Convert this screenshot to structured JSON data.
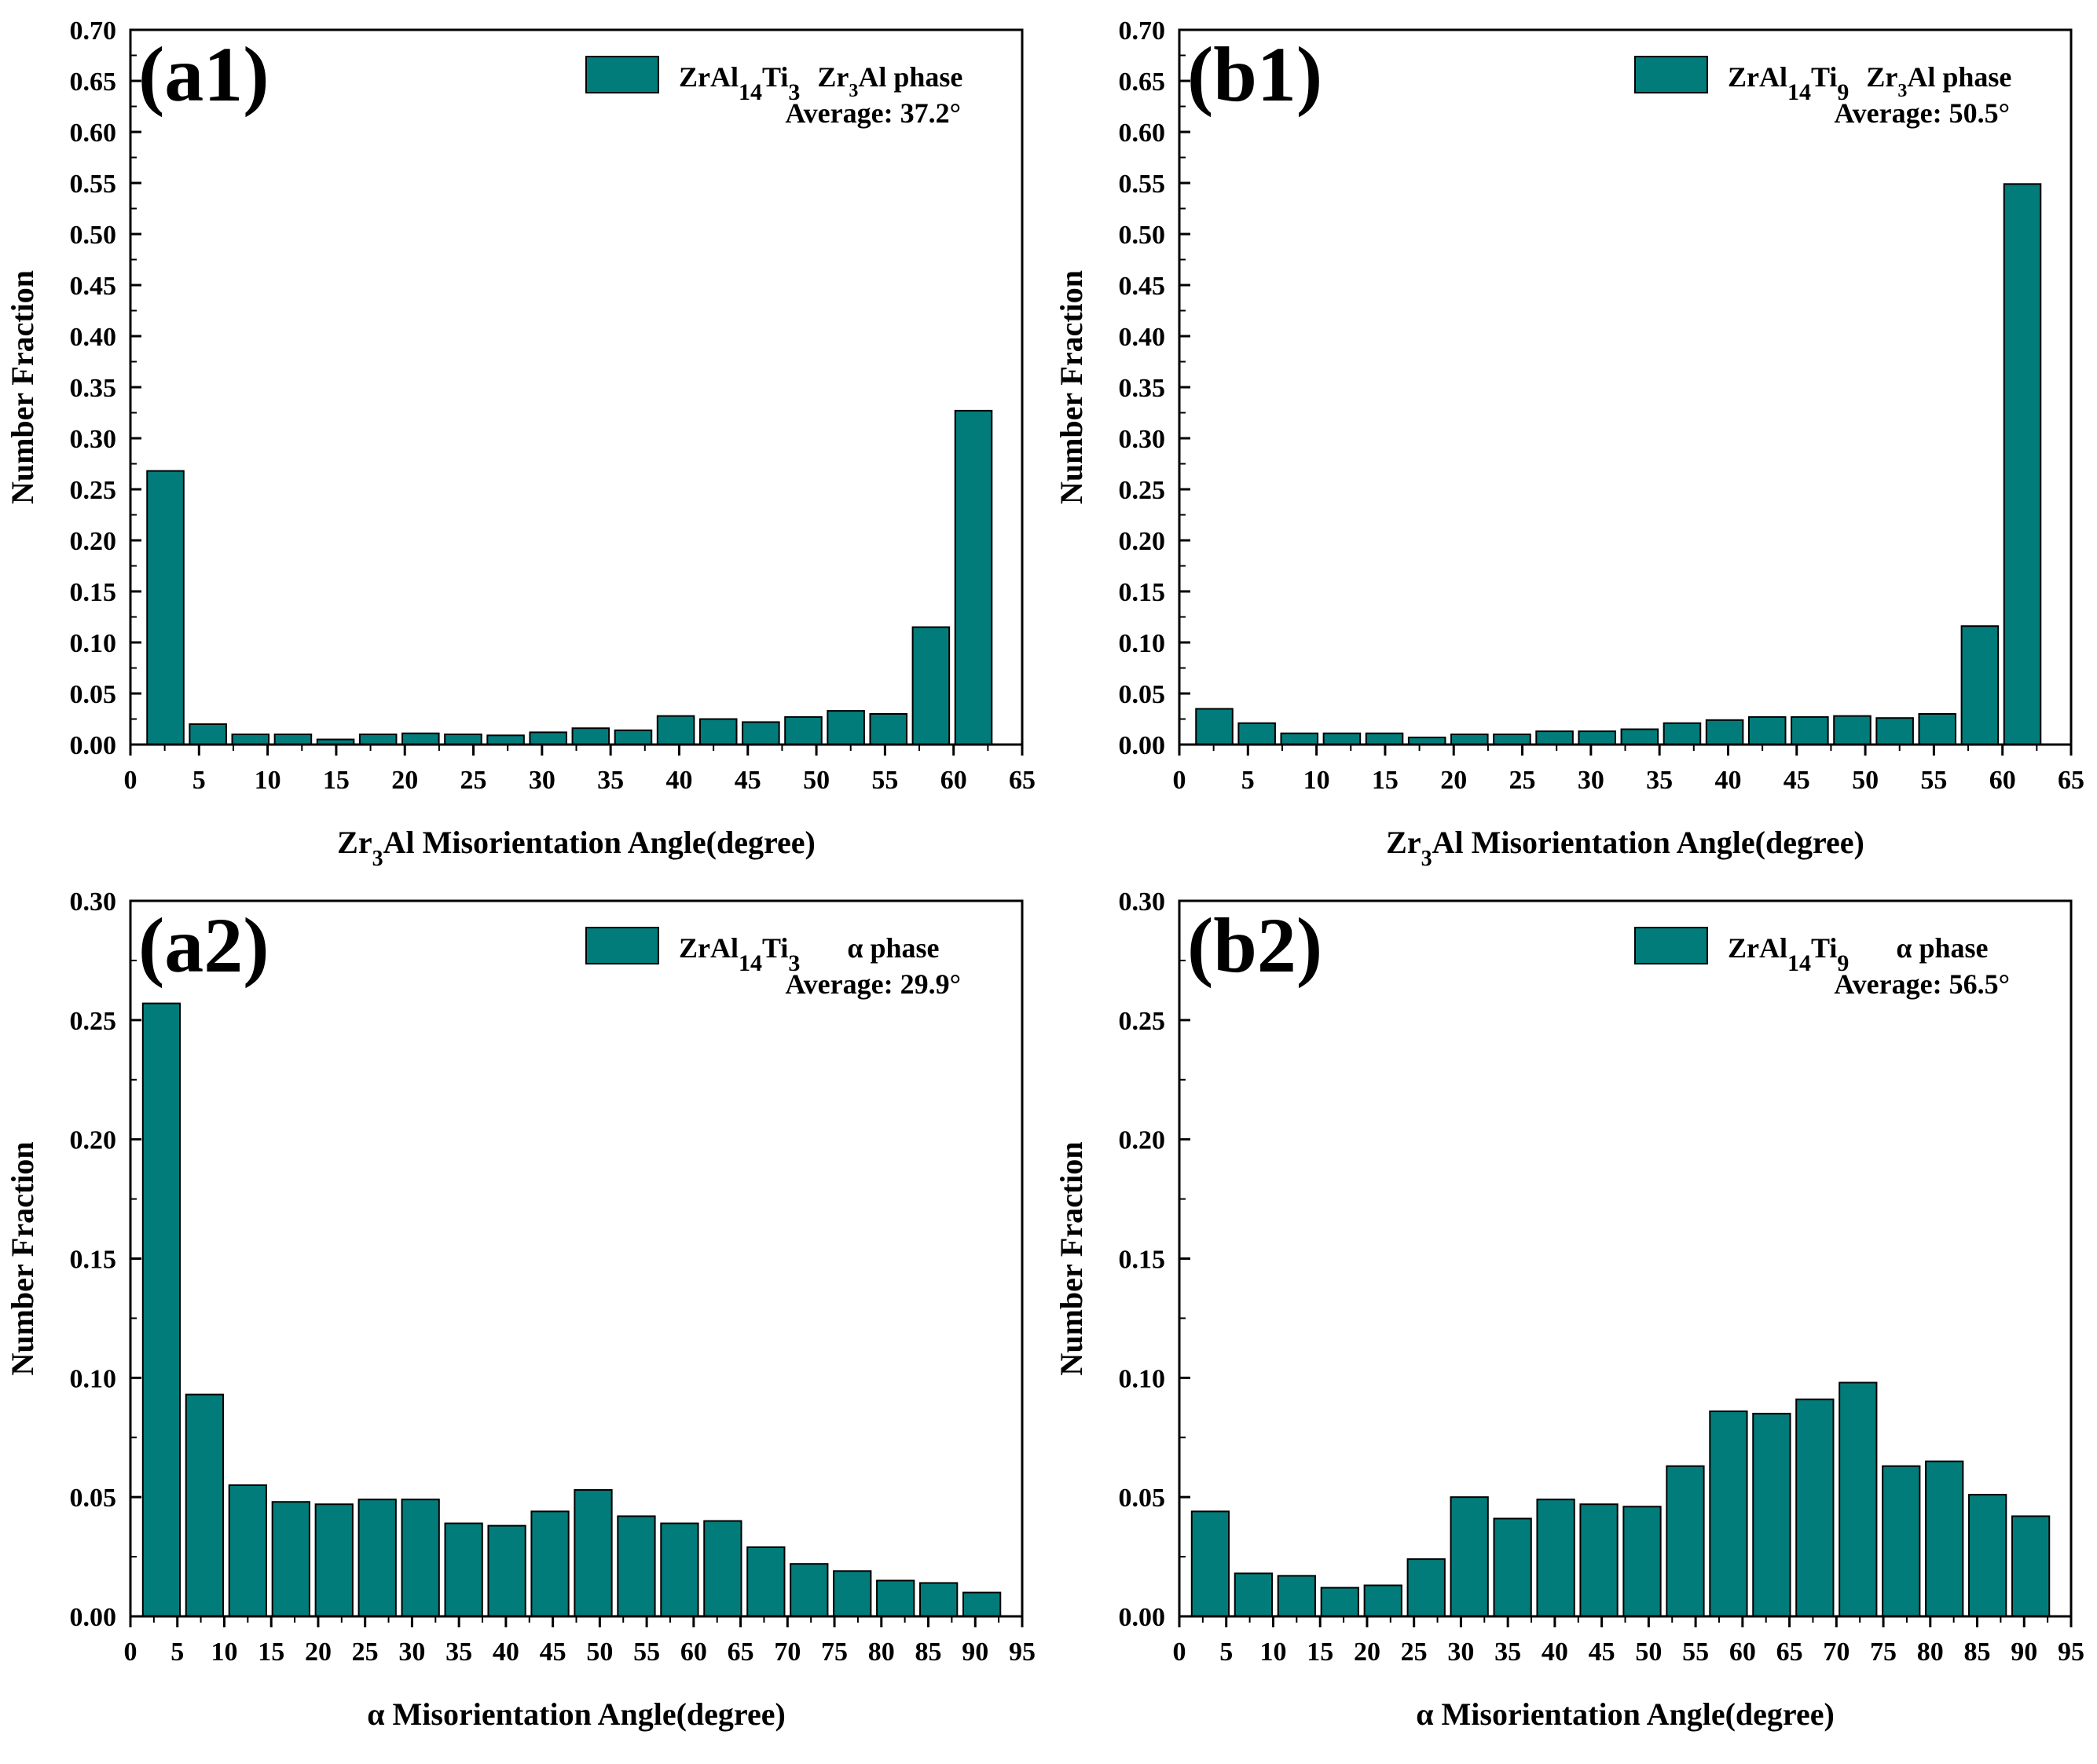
{
  "figure": {
    "bar_color": "#027c7a",
    "panels": [
      {
        "panel_label": "(a1)",
        "legend": {
          "base": "ZrAl",
          "sub1": "14",
          "mid": "Ti",
          "sub2": "3",
          "phase_pre": "Zr",
          "phase_sub": "3",
          "phase_post": "Al phase"
        },
        "average": "Average: 37.2°",
        "xlabel": {
          "pre": "Zr",
          "sub": "3",
          "post": "Al Misorientation Angle(degree)"
        },
        "ylabel": "Number Fraction",
        "yticks": [
          "0.00",
          "0.05",
          "0.10",
          "0.15",
          "0.20",
          "0.25",
          "0.30",
          "0.35",
          "0.40",
          "0.45",
          "0.50",
          "0.55",
          "0.60",
          "0.65",
          "0.70"
        ],
        "xticks": [
          "0",
          "5",
          "10",
          "15",
          "20",
          "25",
          "30",
          "35",
          "40",
          "45",
          "50",
          "55",
          "60",
          "65"
        ]
      },
      {
        "panel_label": "(b1)",
        "legend": {
          "base": "ZrAl",
          "sub1": "14",
          "mid": "Ti",
          "sub2": "9",
          "phase_pre": "Zr",
          "phase_sub": "3",
          "phase_post": "Al phase"
        },
        "average": "Average: 50.5°",
        "xlabel": {
          "pre": "Zr",
          "sub": "3",
          "post": "Al Misorientation Angle(degree)"
        },
        "ylabel": "Number Fraction",
        "yticks": [
          "0.00",
          "0.05",
          "0.10",
          "0.15",
          "0.20",
          "0.25",
          "0.30",
          "0.35",
          "0.40",
          "0.45",
          "0.50",
          "0.55",
          "0.60",
          "0.65",
          "0.70"
        ],
        "xticks": [
          "0",
          "5",
          "10",
          "15",
          "20",
          "25",
          "30",
          "35",
          "40",
          "45",
          "50",
          "55",
          "60",
          "65"
        ]
      },
      {
        "panel_label": "(a2)",
        "legend": {
          "base": "ZrAl",
          "sub1": "14",
          "mid": "Ti",
          "sub2": "3",
          "phase_pre": "α phase",
          "phase_sub": "",
          "phase_post": ""
        },
        "average": "Average: 29.9°",
        "xlabel": {
          "pre": "α Misorientation Angle(degree)",
          "sub": "",
          "post": ""
        },
        "ylabel": "Number Fraction",
        "yticks": [
          "0.00",
          "0.05",
          "0.10",
          "0.15",
          "0.20",
          "0.25",
          "0.30"
        ],
        "xticks": [
          "0",
          "5",
          "10",
          "15",
          "20",
          "25",
          "30",
          "35",
          "40",
          "45",
          "50",
          "55",
          "60",
          "65",
          "70",
          "75",
          "80",
          "85",
          "90",
          "95"
        ]
      },
      {
        "panel_label": "(b2)",
        "legend": {
          "base": "ZrAl",
          "sub1": "14",
          "mid": "Ti",
          "sub2": "9",
          "phase_pre": "α phase",
          "phase_sub": "",
          "phase_post": ""
        },
        "average": "Average: 56.5°",
        "xlabel": {
          "pre": "α Misorientation Angle(degree)",
          "sub": "",
          "post": ""
        },
        "ylabel": "Number Fraction",
        "yticks": [
          "0.00",
          "0.05",
          "0.10",
          "0.15",
          "0.20",
          "0.25",
          "0.30"
        ],
        "xticks": [
          "0",
          "5",
          "10",
          "15",
          "20",
          "25",
          "30",
          "35",
          "40",
          "45",
          "50",
          "55",
          "60",
          "65",
          "70",
          "75",
          "80",
          "85",
          "90",
          "95"
        ]
      }
    ]
  },
  "chart_data": [
    {
      "type": "bar",
      "title": "(a1)",
      "series_name": "ZrAl14Ti3 Zr3Al phase",
      "xlabel": "Zr3Al Misorientation Angle(degree)",
      "ylabel": "Number Fraction",
      "xlim": [
        0,
        65
      ],
      "ylim": [
        0,
        0.7
      ],
      "bin_width": 3.1,
      "x": [
        2.55,
        5.65,
        8.75,
        11.85,
        14.95,
        18.05,
        21.15,
        24.25,
        27.35,
        30.45,
        33.55,
        36.65,
        39.75,
        42.85,
        45.95,
        49.05,
        52.15,
        55.25,
        58.35,
        61.45
      ],
      "values": [
        0.268,
        0.02,
        0.01,
        0.01,
        0.005,
        0.01,
        0.011,
        0.01,
        0.009,
        0.012,
        0.016,
        0.014,
        0.028,
        0.025,
        0.022,
        0.027,
        0.033,
        0.03,
        0.115,
        0.327
      ],
      "average": 37.2
    },
    {
      "type": "bar",
      "title": "(b1)",
      "series_name": "ZrAl14Ti9 Zr3Al phase",
      "xlabel": "Zr3Al Misorientation Angle(degree)",
      "ylabel": "Number Fraction",
      "xlim": [
        0,
        65
      ],
      "ylim": [
        0,
        0.7
      ],
      "bin_width": 3.1,
      "x": [
        2.55,
        5.65,
        8.75,
        11.85,
        14.95,
        18.05,
        21.15,
        24.25,
        27.35,
        30.45,
        33.55,
        36.65,
        39.75,
        42.85,
        45.95,
        49.05,
        52.15,
        55.25,
        58.35,
        61.45
      ],
      "values": [
        0.035,
        0.021,
        0.011,
        0.011,
        0.011,
        0.007,
        0.01,
        0.01,
        0.013,
        0.013,
        0.015,
        0.021,
        0.024,
        0.027,
        0.027,
        0.028,
        0.026,
        0.03,
        0.116,
        0.549
      ],
      "average": 50.5
    },
    {
      "type": "bar",
      "title": "(a2)",
      "series_name": "ZrAl14Ti3 α phase",
      "xlabel": "α Misorientation Angle(degree)",
      "ylabel": "Number Fraction",
      "xlim": [
        0,
        95
      ],
      "ylim": [
        0,
        0.3
      ],
      "bin_width": 4.6,
      "x": [
        3.3,
        7.9,
        12.5,
        17.1,
        21.7,
        26.3,
        30.9,
        35.5,
        40.1,
        44.7,
        49.3,
        53.9,
        58.5,
        63.1,
        67.7,
        72.3,
        76.9,
        81.5,
        86.1,
        90.7
      ],
      "values": [
        0.257,
        0.093,
        0.055,
        0.048,
        0.047,
        0.049,
        0.049,
        0.039,
        0.038,
        0.044,
        0.053,
        0.042,
        0.039,
        0.04,
        0.029,
        0.022,
        0.019,
        0.015,
        0.014,
        0.01
      ],
      "average": 29.9
    },
    {
      "type": "bar",
      "title": "(b2)",
      "series_name": "ZrAl14Ti9 α phase",
      "xlabel": "α Misorientation Angle(degree)",
      "ylabel": "Number Fraction",
      "xlim": [
        0,
        95
      ],
      "ylim": [
        0,
        0.3
      ],
      "bin_width": 4.6,
      "x": [
        3.3,
        7.9,
        12.5,
        17.1,
        21.7,
        26.3,
        30.9,
        35.5,
        40.1,
        44.7,
        49.3,
        53.9,
        58.5,
        63.1,
        67.7,
        72.3,
        76.9,
        81.5,
        86.1,
        90.7
      ],
      "values": [
        0.044,
        0.018,
        0.017,
        0.012,
        0.013,
        0.024,
        0.05,
        0.041,
        0.049,
        0.047,
        0.046,
        0.063,
        0.086,
        0.085,
        0.091,
        0.098,
        0.063,
        0.065,
        0.051,
        0.042
      ],
      "average": 56.5
    }
  ]
}
